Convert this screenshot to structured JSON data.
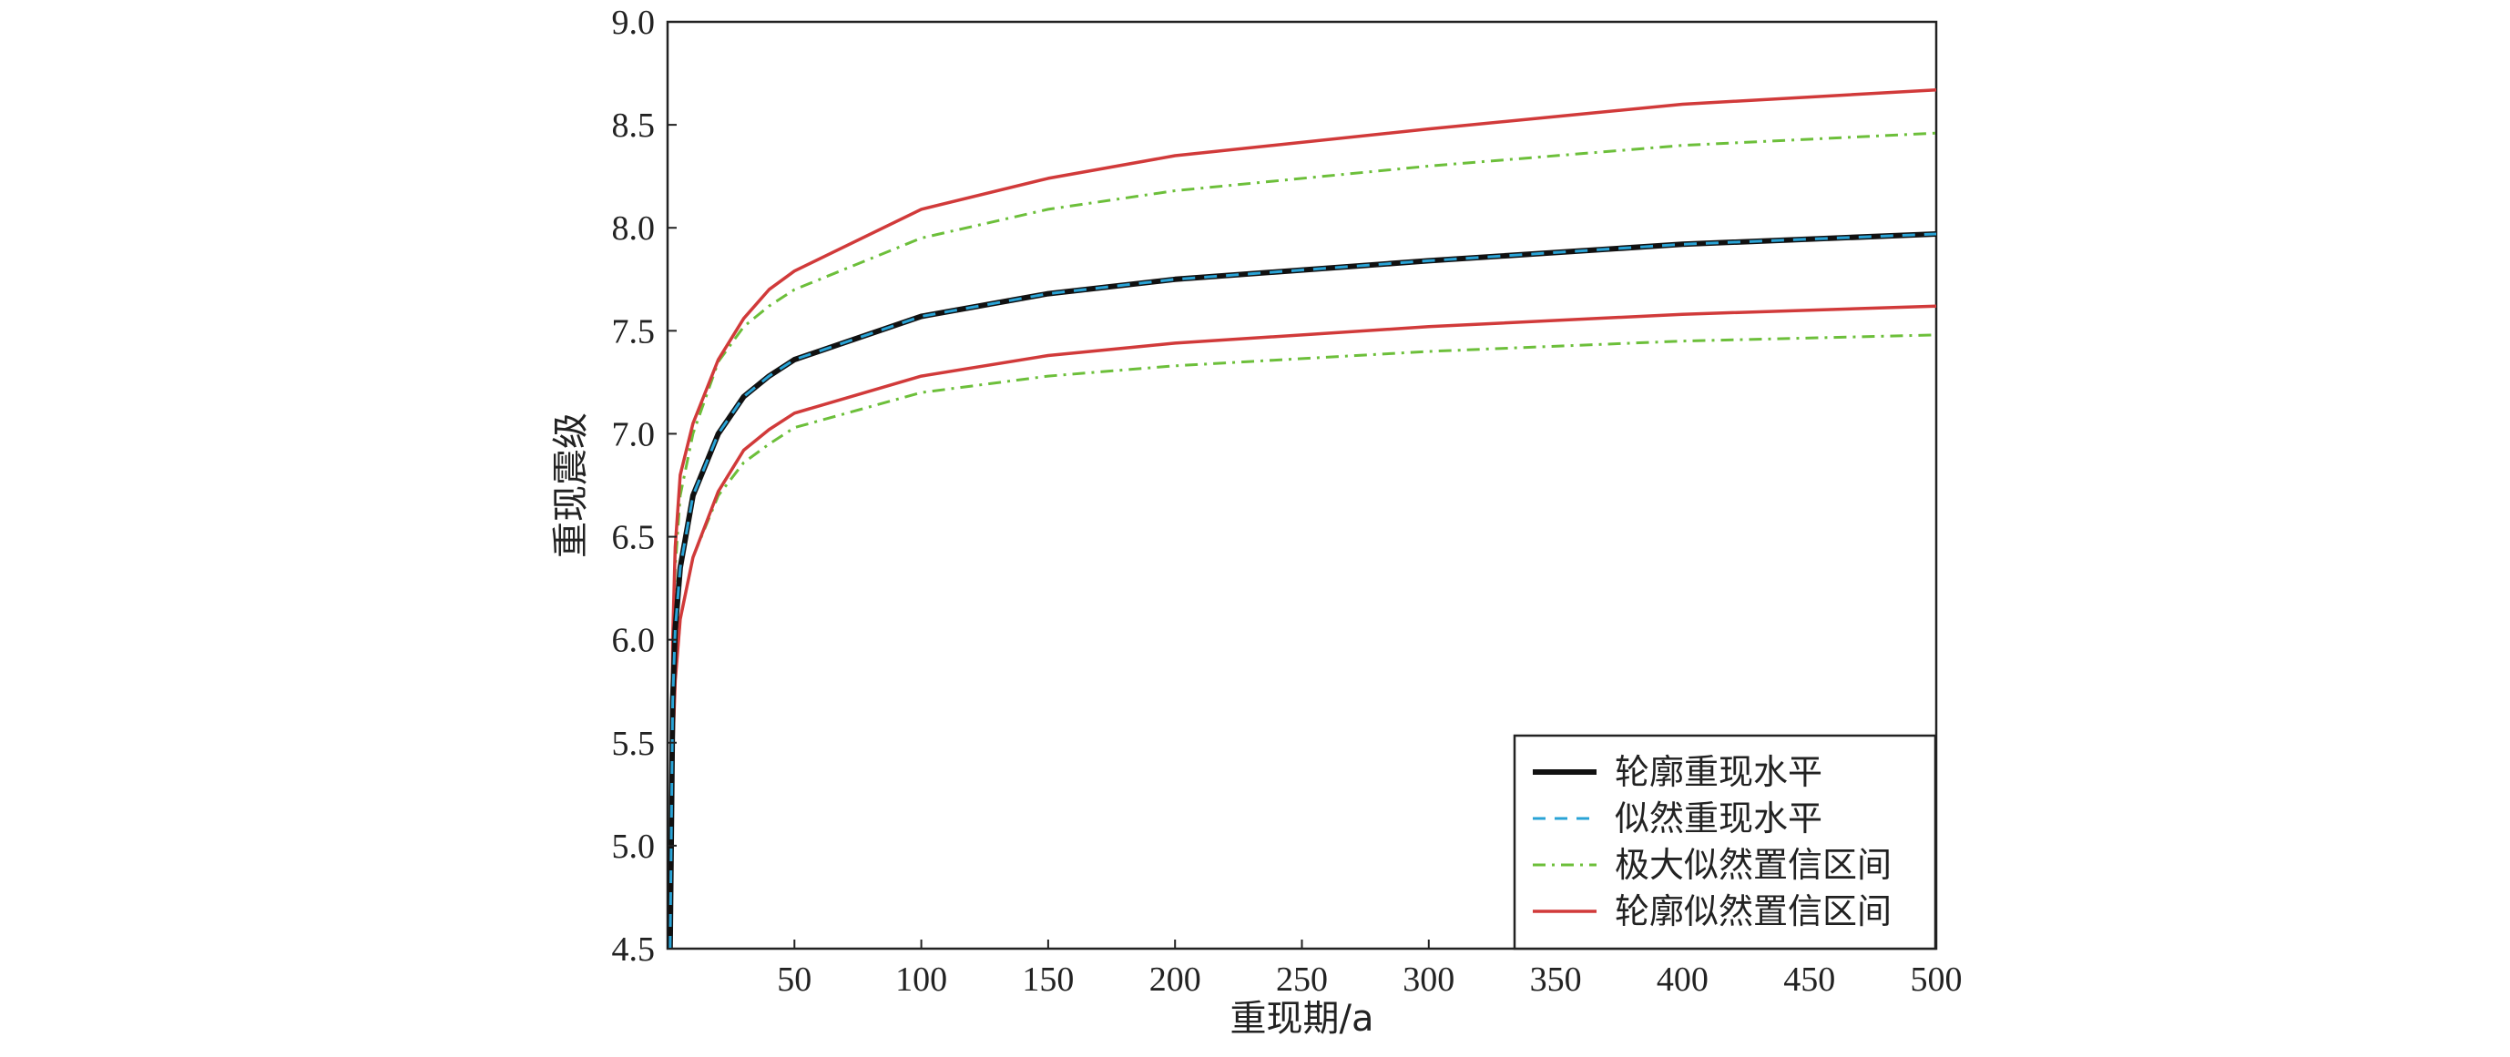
{
  "chart_data": {
    "type": "line",
    "xlabel": "重现期/a",
    "ylabel": "重现震级",
    "xlim": [
      1,
      500
    ],
    "ylim": [
      4.5,
      9.0
    ],
    "xticks": [
      50,
      100,
      150,
      200,
      250,
      300,
      350,
      400,
      450,
      500
    ],
    "yticks": [
      4.5,
      5.0,
      5.5,
      6.0,
      6.5,
      7.0,
      7.5,
      8.0,
      8.5,
      9.0
    ],
    "grid": false,
    "legend_position": "bottom-right",
    "x": [
      1,
      2,
      3,
      5,
      10,
      20,
      30,
      40,
      50,
      100,
      150,
      200,
      300,
      400,
      500
    ],
    "series": [
      {
        "name": "轮廓重现水平",
        "color": "#111111",
        "style": "solid-thick",
        "values": [
          4.5,
          5.7,
          6.05,
          6.35,
          6.7,
          7.0,
          7.18,
          7.28,
          7.36,
          7.57,
          7.68,
          7.75,
          7.84,
          7.92,
          7.97
        ]
      },
      {
        "name": "似然重现水平",
        "color": "#29a3d6",
        "style": "dashed",
        "values": [
          4.5,
          5.7,
          6.05,
          6.35,
          6.7,
          7.0,
          7.18,
          7.28,
          7.36,
          7.57,
          7.68,
          7.75,
          7.84,
          7.92,
          7.97
        ]
      },
      {
        "name": "极大似然置信区间",
        "color": "#6cbf3a",
        "style": "dashdot",
        "values": [
          4.5,
          5.95,
          6.35,
          6.7,
          7.0,
          7.35,
          7.52,
          7.62,
          7.7,
          7.95,
          8.09,
          8.18,
          8.3,
          8.4,
          8.46
        ]
      },
      {
        "name": "极大似然置信区间",
        "color": "#6cbf3a",
        "style": "dashdot",
        "values": [
          4.5,
          5.45,
          5.8,
          6.1,
          6.4,
          6.7,
          6.86,
          6.95,
          7.03,
          7.2,
          7.28,
          7.33,
          7.4,
          7.45,
          7.48
        ]
      },
      {
        "name": "轮廓似然置信区间",
        "color": "#d13a3a",
        "style": "solid",
        "values": [
          4.5,
          6.0,
          6.45,
          6.8,
          7.05,
          7.36,
          7.56,
          7.7,
          7.79,
          8.09,
          8.24,
          8.35,
          8.48,
          8.6,
          8.67
        ]
      },
      {
        "name": "轮廓似然置信区间",
        "color": "#d13a3a",
        "style": "solid",
        "values": [
          4.5,
          5.45,
          5.8,
          6.1,
          6.4,
          6.72,
          6.92,
          7.02,
          7.1,
          7.28,
          7.38,
          7.44,
          7.52,
          7.58,
          7.62
        ]
      }
    ],
    "legend": [
      {
        "label": "轮廓重现水平",
        "color": "#111111",
        "style": "solid-thick"
      },
      {
        "label": "似然重现水平",
        "color": "#29a3d6",
        "style": "dashed"
      },
      {
        "label": "极大似然置信区间",
        "color": "#6cbf3a",
        "style": "dashdot"
      },
      {
        "label": "轮廓似然置信区间",
        "color": "#d13a3a",
        "style": "solid"
      }
    ]
  }
}
